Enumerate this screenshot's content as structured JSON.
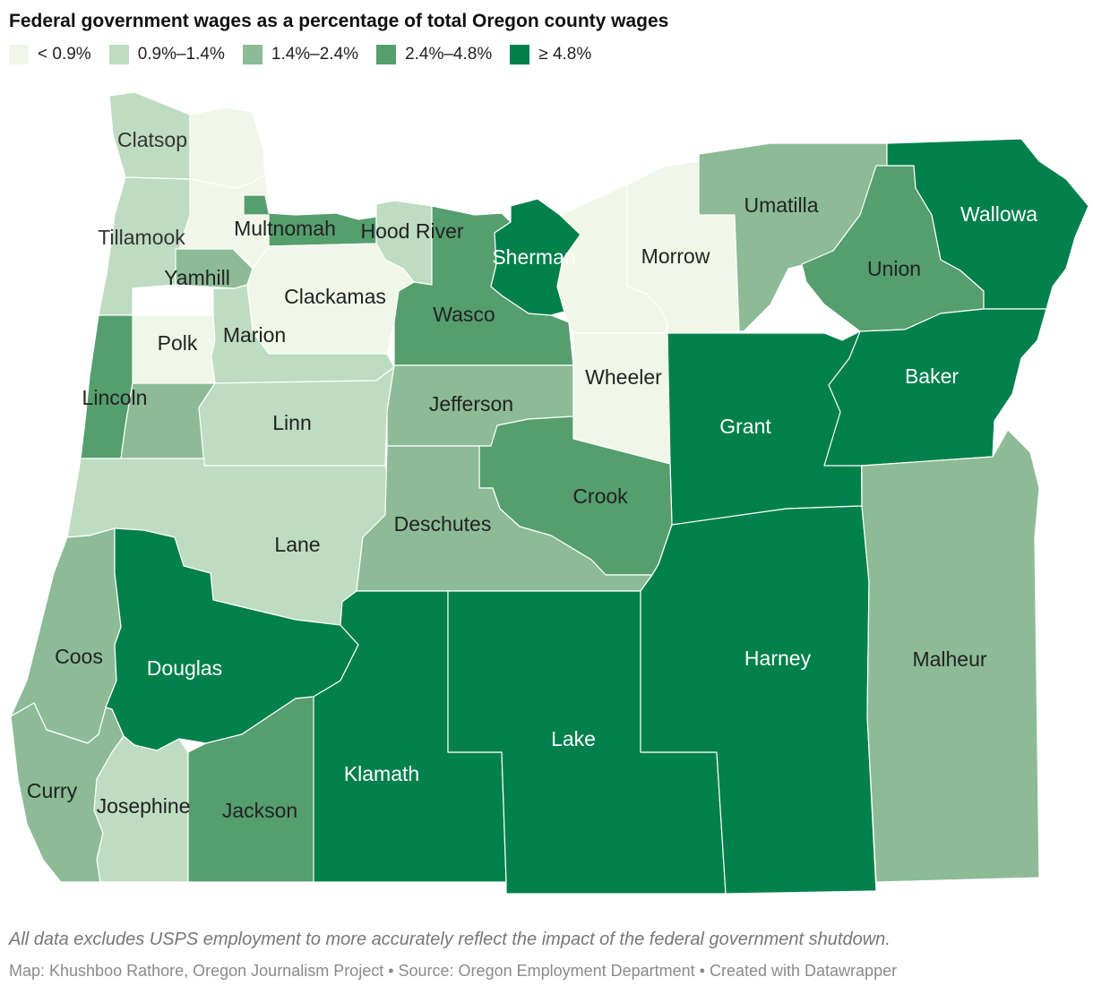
{
  "title": "Federal government wages as a percentage of total Oregon county wages",
  "legend": [
    {
      "label": "< 0.9%",
      "color": "#f0f7e8"
    },
    {
      "label": "0.9%–1.4%",
      "color": "#bedcc1"
    },
    {
      "label": "1.4%–2.4%",
      "color": "#8cbb95"
    },
    {
      "label": "2.4%–4.8%",
      "color": "#559e6e"
    },
    {
      "label": "≥ 4.8%",
      "color": "#00804b"
    }
  ],
  "counties": [
    {
      "id": "clatsop",
      "name": "Clatsop",
      "bin": 1,
      "label_color": "#333333"
    },
    {
      "id": "columbia",
      "name": "",
      "bin": 0,
      "label_color": "#333333"
    },
    {
      "id": "washington",
      "name": "",
      "bin": 0,
      "label_color": "#333333"
    },
    {
      "id": "tillamook",
      "name": "Tillamook",
      "bin": 1,
      "label_color": "#333333"
    },
    {
      "id": "multnomah",
      "name": "Multnomah",
      "bin": 3,
      "label_color": "#222222"
    },
    {
      "id": "hoodriver",
      "name": "Hood River",
      "bin": 1,
      "label_color": "#222222"
    },
    {
      "id": "yamhill",
      "name": "Yamhill",
      "bin": 2,
      "label_color": "#222222"
    },
    {
      "id": "clackamas",
      "name": "Clackamas",
      "bin": 0,
      "label_color": "#222222"
    },
    {
      "id": "polk",
      "name": "Polk",
      "bin": 0,
      "label_color": "#222222"
    },
    {
      "id": "marion",
      "name": "Marion",
      "bin": 1,
      "label_color": "#222222"
    },
    {
      "id": "lincoln",
      "name": "Lincoln",
      "bin": 3,
      "label_color": "#222222"
    },
    {
      "id": "benton",
      "name": "",
      "bin": 2,
      "label_color": "#222222"
    },
    {
      "id": "linn",
      "name": "Linn",
      "bin": 1,
      "label_color": "#222222"
    },
    {
      "id": "lane",
      "name": "Lane",
      "bin": 1,
      "label_color": "#222222"
    },
    {
      "id": "wasco",
      "name": "Wasco",
      "bin": 3,
      "label_color": "#222222"
    },
    {
      "id": "sherman",
      "name": "Sherman",
      "bin": 4,
      "label_color": "#ffffff"
    },
    {
      "id": "gilliam",
      "name": "",
      "bin": 0,
      "label_color": "#222222"
    },
    {
      "id": "morrow",
      "name": "Morrow",
      "bin": 0,
      "label_color": "#222222"
    },
    {
      "id": "umatilla",
      "name": "Umatilla",
      "bin": 2,
      "label_color": "#222222"
    },
    {
      "id": "union",
      "name": "Union",
      "bin": 3,
      "label_color": "#222222"
    },
    {
      "id": "wallowa",
      "name": "Wallowa",
      "bin": 4,
      "label_color": "#ffffff"
    },
    {
      "id": "jefferson",
      "name": "Jefferson",
      "bin": 2,
      "label_color": "#222222"
    },
    {
      "id": "wheeler",
      "name": "Wheeler",
      "bin": 0,
      "label_color": "#222222"
    },
    {
      "id": "grant",
      "name": "Grant",
      "bin": 4,
      "label_color": "#ffffff"
    },
    {
      "id": "baker",
      "name": "Baker",
      "bin": 4,
      "label_color": "#ffffff"
    },
    {
      "id": "crook",
      "name": "Crook",
      "bin": 3,
      "label_color": "#222222"
    },
    {
      "id": "deschutes",
      "name": "Deschutes",
      "bin": 2,
      "label_color": "#222222"
    },
    {
      "id": "coos",
      "name": "Coos",
      "bin": 2,
      "label_color": "#222222"
    },
    {
      "id": "douglas",
      "name": "Douglas",
      "bin": 4,
      "label_color": "#ffffff"
    },
    {
      "id": "curry",
      "name": "Curry",
      "bin": 2,
      "label_color": "#222222"
    },
    {
      "id": "josephine",
      "name": "Josephine",
      "bin": 1,
      "label_color": "#222222"
    },
    {
      "id": "jackson",
      "name": "Jackson",
      "bin": 3,
      "label_color": "#222222"
    },
    {
      "id": "klamath",
      "name": "Klamath",
      "bin": 4,
      "label_color": "#ffffff"
    },
    {
      "id": "lake",
      "name": "Lake",
      "bin": 4,
      "label_color": "#ffffff"
    },
    {
      "id": "harney",
      "name": "Harney",
      "bin": 4,
      "label_color": "#ffffff"
    },
    {
      "id": "malheur",
      "name": "Malheur",
      "bin": 2,
      "label_color": "#222222"
    }
  ],
  "note": "All data excludes USPS employment to more accurately reflect the impact of the federal government shutdown.",
  "credit": "Map: Khushboo Rathore, Oregon Journalism Project • Source: Oregon Employment Department • Created with Datawrapper"
}
